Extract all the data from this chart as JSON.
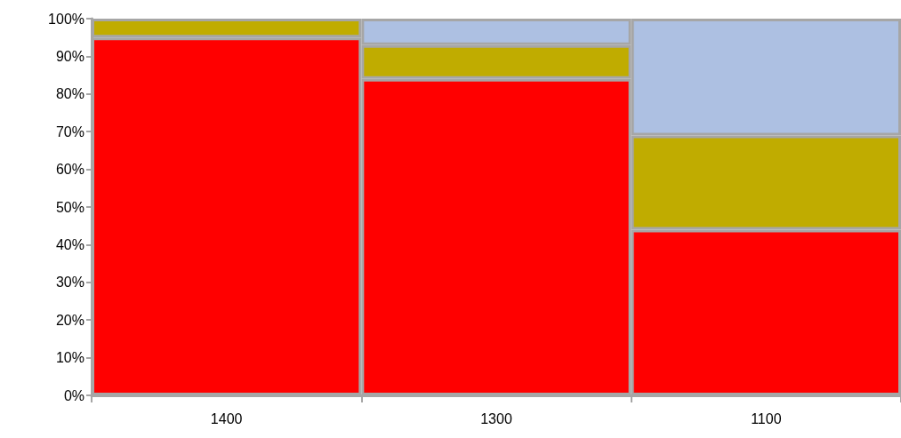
{
  "chart_data": {
    "type": "bar",
    "stacked": true,
    "categories": [
      "1400",
      "1300",
      "1100"
    ],
    "series": [
      {
        "color": "#ff0000",
        "values": [
          95,
          84,
          44
        ]
      },
      {
        "color": "#c0ac00",
        "values": [
          5,
          9,
          25
        ]
      },
      {
        "color": "#adc0e2",
        "values": [
          null,
          7,
          31
        ]
      }
    ],
    "ylim": [
      0,
      100
    ],
    "yticks": [
      {
        "value": 0,
        "label": "0%"
      },
      {
        "value": 10,
        "label": "10%"
      },
      {
        "value": 20,
        "label": "20%"
      },
      {
        "value": 30,
        "label": "30%"
      },
      {
        "value": 40,
        "label": "40%"
      },
      {
        "value": 50,
        "label": "50%"
      },
      {
        "value": 60,
        "label": "60%"
      },
      {
        "value": 70,
        "label": "70%"
      },
      {
        "value": 80,
        "label": "80%"
      },
      {
        "value": 90,
        "label": "90%"
      },
      {
        "value": 100,
        "label": "100%"
      }
    ],
    "grid": false
  }
}
